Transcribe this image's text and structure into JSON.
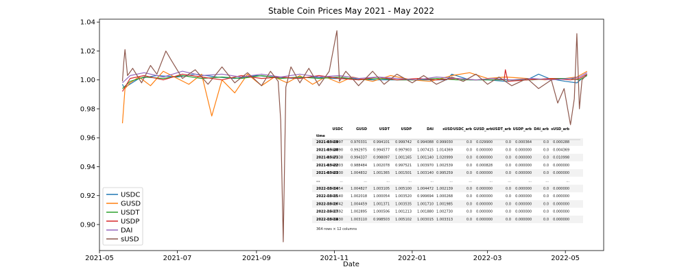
{
  "chart_data": {
    "type": "line",
    "title": "Stable Coin Prices May 2021 - May 2022",
    "xlabel": "Date",
    "ylabel": "",
    "x_range": [
      "2021-05-01",
      "2022-05-31"
    ],
    "ylim": [
      0.882,
      1.042
    ],
    "x_ticks": [
      {
        "date": "2021-05-01",
        "label": "2021-05"
      },
      {
        "date": "2021-07-01",
        "label": "2021-07"
      },
      {
        "date": "2021-09-01",
        "label": "2021-09"
      },
      {
        "date": "2021-11-01",
        "label": "2021-11"
      },
      {
        "date": "2022-01-01",
        "label": "2022-01"
      },
      {
        "date": "2022-03-01",
        "label": "2022-03"
      },
      {
        "date": "2022-05-01",
        "label": "2022-05"
      }
    ],
    "y_ticks": [
      {
        "value": 0.9,
        "label": "0.90"
      },
      {
        "value": 0.92,
        "label": "0.92"
      },
      {
        "value": 0.94,
        "label": "0.94"
      },
      {
        "value": 0.96,
        "label": "0.96"
      },
      {
        "value": 0.98,
        "label": "0.98"
      },
      {
        "value": 1.0,
        "label": "1.00"
      },
      {
        "value": 1.02,
        "label": "1.02"
      },
      {
        "value": 1.04,
        "label": "1.04"
      }
    ],
    "grid": false,
    "legend_position": "lower-left",
    "series": [
      {
        "name": "USDC",
        "color": "#1f77b4",
        "points": [
          [
            "2021-05-19",
            0.997
          ],
          [
            "2021-05-20",
            0.995
          ],
          [
            "2021-05-23",
            0.996
          ],
          [
            "2021-06-01",
            1.001
          ],
          [
            "2021-06-15",
            1.003
          ],
          [
            "2021-07-01",
            1.002
          ],
          [
            "2021-07-15",
            1.004
          ],
          [
            "2021-08-01",
            1.002
          ],
          [
            "2021-08-15",
            1.001
          ],
          [
            "2021-09-01",
            1.003
          ],
          [
            "2021-09-15",
            1.002
          ],
          [
            "2021-10-01",
            1.001
          ],
          [
            "2021-10-15",
            1.002
          ],
          [
            "2021-11-01",
            1.001
          ],
          [
            "2021-11-15",
            1.001
          ],
          [
            "2021-12-01",
            1.0
          ],
          [
            "2021-12-15",
            1.0
          ],
          [
            "2022-01-01",
            1.0
          ],
          [
            "2022-01-15",
            1.0
          ],
          [
            "2022-01-28",
            1.0
          ],
          [
            "2022-02-01",
            1.004
          ],
          [
            "2022-02-15",
            1.0
          ],
          [
            "2022-03-01",
            1.0
          ],
          [
            "2022-03-15",
            0.999
          ],
          [
            "2022-04-01",
            1.0
          ],
          [
            "2022-04-10",
            1.004
          ],
          [
            "2022-04-18",
            1.001
          ],
          [
            "2022-05-01",
            0.999
          ],
          [
            "2022-05-10",
            0.998
          ],
          [
            "2022-05-14",
            1.001
          ],
          [
            "2022-05-18",
            1.003
          ]
        ]
      },
      {
        "name": "GUSD",
        "color": "#ff7f0e",
        "points": [
          [
            "2021-05-19",
            0.97
          ],
          [
            "2021-05-21",
            0.994
          ],
          [
            "2021-05-25",
            0.998
          ],
          [
            "2021-06-01",
            1.002
          ],
          [
            "2021-06-10",
            0.996
          ],
          [
            "2021-06-20",
            1.006
          ],
          [
            "2021-07-01",
            1.001
          ],
          [
            "2021-07-10",
            0.997
          ],
          [
            "2021-07-20",
            1.004
          ],
          [
            "2021-07-28",
            0.975
          ],
          [
            "2021-08-05",
            1.0
          ],
          [
            "2021-08-15",
            0.991
          ],
          [
            "2021-08-25",
            1.004
          ],
          [
            "2021-09-05",
            0.996
          ],
          [
            "2021-09-15",
            1.002
          ],
          [
            "2021-09-25",
            0.998
          ],
          [
            "2021-10-05",
            1.003
          ],
          [
            "2021-10-15",
            0.997
          ],
          [
            "2021-10-25",
            1.002
          ],
          [
            "2021-11-05",
            0.998
          ],
          [
            "2021-11-15",
            1.002
          ],
          [
            "2021-12-01",
            0.999
          ],
          [
            "2021-12-15",
            1.003
          ],
          [
            "2022-01-01",
            1.0
          ],
          [
            "2022-01-15",
            0.999
          ],
          [
            "2022-02-01",
            1.003
          ],
          [
            "2022-02-15",
            1.005
          ],
          [
            "2022-03-01",
            1.001
          ],
          [
            "2022-03-15",
            1.002
          ],
          [
            "2022-04-01",
            1.001
          ],
          [
            "2022-04-15",
            1.0
          ],
          [
            "2022-05-01",
            1.001
          ],
          [
            "2022-05-10",
            1.002
          ],
          [
            "2022-05-18",
            1.006
          ]
        ]
      },
      {
        "name": "USDT",
        "color": "#2ca02c",
        "points": [
          [
            "2021-05-19",
            0.994
          ],
          [
            "2021-05-25",
            0.999
          ],
          [
            "2021-06-05",
            1.002
          ],
          [
            "2021-06-20",
            1.001
          ],
          [
            "2021-07-05",
            1.003
          ],
          [
            "2021-07-20",
            1.001
          ],
          [
            "2021-08-05",
            1.002
          ],
          [
            "2021-08-20",
            1.001
          ],
          [
            "2021-09-05",
            1.003
          ],
          [
            "2021-09-20",
            1.001
          ],
          [
            "2021-10-05",
            1.002
          ],
          [
            "2021-10-20",
            1.001
          ],
          [
            "2021-11-05",
            1.002
          ],
          [
            "2021-11-20",
            1.0
          ],
          [
            "2021-12-05",
            1.001
          ],
          [
            "2021-12-20",
            1.0
          ],
          [
            "2022-01-05",
            1.0
          ],
          [
            "2022-01-20",
            1.001
          ],
          [
            "2022-02-05",
            1.0
          ],
          [
            "2022-02-20",
            1.0
          ],
          [
            "2022-03-05",
            1.0
          ],
          [
            "2022-03-20",
            1.0
          ],
          [
            "2022-04-05",
            1.0
          ],
          [
            "2022-04-20",
            1.001
          ],
          [
            "2022-05-05",
            1.001
          ],
          [
            "2022-05-12",
            1.0
          ],
          [
            "2022-05-18",
            1.003
          ]
        ]
      },
      {
        "name": "USDP",
        "color": "#d62728",
        "points": [
          [
            "2021-05-19",
            0.992
          ],
          [
            "2021-05-25",
            1.001
          ],
          [
            "2021-06-05",
            1.003
          ],
          [
            "2021-06-20",
            1.0
          ],
          [
            "2021-07-05",
            1.004
          ],
          [
            "2021-07-20",
            1.002
          ],
          [
            "2021-08-05",
            1.0
          ],
          [
            "2021-08-20",
            1.003
          ],
          [
            "2021-09-05",
            1.001
          ],
          [
            "2021-09-20",
            1.002
          ],
          [
            "2021-10-05",
            1.001
          ],
          [
            "2021-10-20",
            1.003
          ],
          [
            "2021-11-05",
            1.001
          ],
          [
            "2021-11-20",
            1.0
          ],
          [
            "2021-12-05",
            1.002
          ],
          [
            "2021-12-20",
            1.0
          ],
          [
            "2022-01-05",
            1.001
          ],
          [
            "2022-01-20",
            1.0
          ],
          [
            "2022-02-05",
            1.001
          ],
          [
            "2022-02-20",
            1.0
          ],
          [
            "2022-03-05",
            1.001
          ],
          [
            "2022-03-14",
            1.0
          ],
          [
            "2022-03-15",
            1.007
          ],
          [
            "2022-03-17",
            0.999
          ],
          [
            "2022-04-01",
            1.0
          ],
          [
            "2022-04-20",
            1.001
          ],
          [
            "2022-05-05",
            1.0
          ],
          [
            "2022-05-12",
            1.001
          ],
          [
            "2022-05-18",
            1.004
          ]
        ]
      },
      {
        "name": "DAI",
        "color": "#9467bd",
        "points": [
          [
            "2021-05-19",
            0.998
          ],
          [
            "2021-05-25",
            1.003
          ],
          [
            "2021-06-05",
            1.005
          ],
          [
            "2021-06-20",
            1.002
          ],
          [
            "2021-07-05",
            1.006
          ],
          [
            "2021-07-20",
            1.003
          ],
          [
            "2021-08-05",
            1.004
          ],
          [
            "2021-08-20",
            1.002
          ],
          [
            "2021-09-05",
            1.004
          ],
          [
            "2021-09-20",
            1.002
          ],
          [
            "2021-10-05",
            1.004
          ],
          [
            "2021-10-20",
            1.002
          ],
          [
            "2021-11-05",
            1.003
          ],
          [
            "2021-11-20",
            1.001
          ],
          [
            "2021-12-05",
            1.002
          ],
          [
            "2021-12-20",
            1.001
          ],
          [
            "2022-01-05",
            1.0
          ],
          [
            "2022-01-20",
            1.002
          ],
          [
            "2022-02-05",
            1.001
          ],
          [
            "2022-02-20",
            1.0
          ],
          [
            "2022-03-05",
            1.001
          ],
          [
            "2022-03-20",
            1.0
          ],
          [
            "2022-04-05",
            1.001
          ],
          [
            "2022-04-20",
            1.0
          ],
          [
            "2022-05-05",
            1.001
          ],
          [
            "2022-05-12",
            1.002
          ],
          [
            "2022-05-18",
            1.005
          ]
        ]
      },
      {
        "name": "sUSD",
        "color": "#8c564b",
        "points": [
          [
            "2021-05-19",
            0.999
          ],
          [
            "2021-05-20",
            1.012
          ],
          [
            "2021-05-21",
            1.021
          ],
          [
            "2021-05-23",
            1.003
          ],
          [
            "2021-05-27",
            1.008
          ],
          [
            "2021-06-03",
            0.998
          ],
          [
            "2021-06-10",
            1.01
          ],
          [
            "2021-06-15",
            1.004
          ],
          [
            "2021-06-22",
            1.02
          ],
          [
            "2021-06-26",
            1.014
          ],
          [
            "2021-07-05",
            1.001
          ],
          [
            "2021-07-15",
            1.007
          ],
          [
            "2021-07-25",
            0.997
          ],
          [
            "2021-08-05",
            1.009
          ],
          [
            "2021-08-15",
            0.998
          ],
          [
            "2021-08-25",
            1.005
          ],
          [
            "2021-09-05",
            0.996
          ],
          [
            "2021-09-12",
            1.006
          ],
          [
            "2021-09-18",
            0.999
          ],
          [
            "2021-09-20",
            0.972
          ],
          [
            "2021-09-22",
            0.888
          ],
          [
            "2021-09-24",
            0.995
          ],
          [
            "2021-09-28",
            1.009
          ],
          [
            "2021-10-05",
            0.998
          ],
          [
            "2021-10-12",
            1.008
          ],
          [
            "2021-10-20",
            0.996
          ],
          [
            "2021-10-28",
            1.006
          ],
          [
            "2021-11-03",
            1.034
          ],
          [
            "2021-11-05",
            0.999
          ],
          [
            "2021-11-10",
            1.006
          ],
          [
            "2021-11-20",
            0.996
          ],
          [
            "2021-12-01",
            1.006
          ],
          [
            "2021-12-10",
            0.997
          ],
          [
            "2021-12-20",
            1.004
          ],
          [
            "2022-01-01",
            0.998
          ],
          [
            "2022-01-10",
            1.003
          ],
          [
            "2022-01-20",
            0.997
          ],
          [
            "2022-02-01",
            1.002
          ],
          [
            "2022-02-10",
            0.999
          ],
          [
            "2022-02-20",
            1.004
          ],
          [
            "2022-03-01",
            0.997
          ],
          [
            "2022-03-10",
            1.002
          ],
          [
            "2022-03-20",
            0.996
          ],
          [
            "2022-04-01",
            1.001
          ],
          [
            "2022-04-10",
            0.994
          ],
          [
            "2022-04-20",
            1.0
          ],
          [
            "2022-04-25",
            0.984
          ],
          [
            "2022-04-30",
            0.994
          ],
          [
            "2022-05-05",
            0.969
          ],
          [
            "2022-05-08",
            0.987
          ],
          [
            "2022-05-10",
            1.032
          ],
          [
            "2022-05-12",
            0.98
          ],
          [
            "2022-05-14",
            1.0
          ],
          [
            "2022-05-18",
            1.004
          ]
        ]
      }
    ],
    "table": {
      "columns": [
        "USDC",
        "GUSD",
        "USDT",
        "USDP",
        "DAI",
        "sUSD",
        "USDC_arb",
        "GUSD_arb",
        "USDT_arb",
        "USDP_arb",
        "DAI_arb",
        "sUSD_arb"
      ],
      "index_name": "time",
      "rows": [
        [
          "2021-05-19",
          "0.996097",
          "0.970331",
          "0.994101",
          "0.999742",
          "0.994088",
          "0.999030",
          "0.0",
          "0.029900",
          "0.0",
          "0.000364",
          "0.0",
          "0.000288"
        ],
        [
          "2021-05-20",
          "0.994890",
          "0.992975",
          "0.994577",
          "0.997903",
          "1.007415",
          "1.014369",
          "0.0",
          "0.000000",
          "0.0",
          "0.000000",
          "0.0",
          "0.004369"
        ],
        [
          "2021-05-21",
          "0.997838",
          "0.994337",
          "0.998097",
          "1.001165",
          "1.001140",
          "1.020999",
          "0.0",
          "0.000000",
          "0.0",
          "0.000000",
          "0.0",
          "0.010998"
        ],
        [
          "2021-05-22",
          "0.998003",
          "0.988484",
          "1.002078",
          "0.997521",
          "1.003970",
          "1.002539",
          "0.0",
          "0.000828",
          "0.0",
          "0.000000",
          "0.0",
          "0.000000"
        ],
        [
          "2021-05-23",
          "0.996030",
          "1.004832",
          "1.001365",
          "1.001501",
          "1.003140",
          "0.995259",
          "0.0",
          "0.000000",
          "0.0",
          "0.000000",
          "0.0",
          "0.000000"
        ],
        [
          "...",
          "...",
          "...",
          "...",
          "...",
          "...",
          "...",
          "...",
          "...",
          "...",
          "...",
          "...",
          "..."
        ],
        [
          "2022-05-14",
          "1.006054",
          "1.004827",
          "1.003105",
          "1.005100",
          "1.004472",
          "1.002139",
          "0.0",
          "0.000000",
          "0.0",
          "0.000000",
          "0.0",
          "0.000000"
        ],
        [
          "2022-05-15",
          "1.003140",
          "1.002018",
          "1.000054",
          "1.003520",
          "0.999694",
          "1.000268",
          "0.0",
          "0.000000",
          "0.0",
          "0.000000",
          "0.0",
          "0.000000"
        ],
        [
          "2022-05-16",
          "1.002742",
          "1.004459",
          "1.001371",
          "1.003535",
          "1.001710",
          "1.001985",
          "0.0",
          "0.000000",
          "0.0",
          "0.000000",
          "0.0",
          "0.000000"
        ],
        [
          "2022-05-17",
          "1.002692",
          "1.002895",
          "1.000506",
          "1.001213",
          "1.001880",
          "1.002730",
          "0.0",
          "0.000000",
          "0.0",
          "0.000000",
          "0.0",
          "0.000000"
        ],
        [
          "2022-05-18",
          "1.005430",
          "1.003110",
          "0.998503",
          "1.005102",
          "1.003015",
          "1.003313",
          "0.0",
          "0.000000",
          "0.0",
          "0.000000",
          "0.0",
          "0.000000"
        ]
      ],
      "footer": "364 rows × 12 columns"
    }
  }
}
